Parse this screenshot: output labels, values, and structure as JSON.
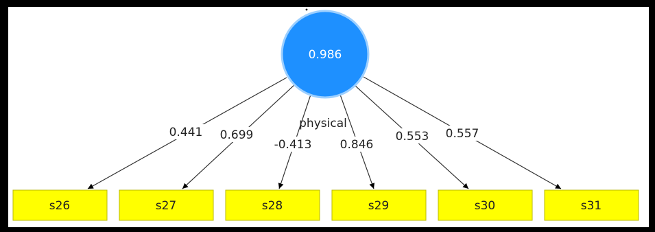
{
  "diagram": {
    "latent": {
      "name": "physical",
      "value": "0.986",
      "fill": "#1e90ff",
      "stroke": "#9ccfff"
    },
    "indicator_fill": "#ffff00",
    "indicator_stroke": "#b8b800",
    "indicators": [
      {
        "label": "s26",
        "loading": "0.441"
      },
      {
        "label": "s27",
        "loading": "0.699"
      },
      {
        "label": "s28",
        "loading": "-0.413"
      },
      {
        "label": "s29",
        "loading": "0.846"
      },
      {
        "label": "s30",
        "loading": "0.553"
      },
      {
        "label": "s31",
        "loading": "0.557"
      }
    ]
  }
}
